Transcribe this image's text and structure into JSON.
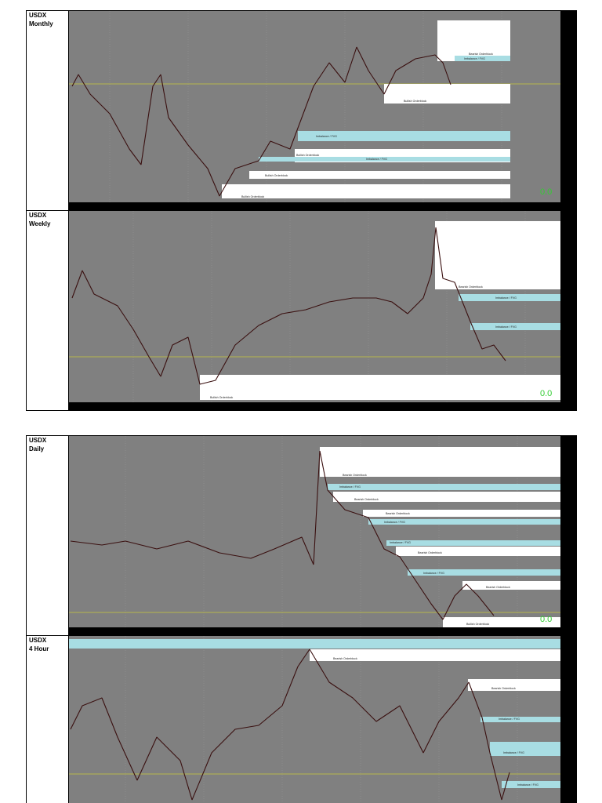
{
  "panels": [
    {
      "symbol": "USDX",
      "timeframe": "Monthly",
      "zones": [
        "Bearish Orderblock",
        "Imbalance / FVG",
        "Bullish Orderblock",
        "Imbalance / FVG",
        "Bullish Orderblock",
        "Imbalance / FVG",
        "Bullish Orderblock",
        "Bullish Orderblock"
      ],
      "level": "0.0"
    },
    {
      "symbol": "USDX",
      "timeframe": "Weekly",
      "zones": [
        "Bearish Orderblock",
        "Imbalance / FVG",
        "Imbalance / FVG",
        "Bullish Orderblock"
      ],
      "level": "0.0"
    },
    {
      "symbol": "USDX",
      "timeframe": "Daily",
      "zones": [
        "Bearish Orderblock",
        "Imbalance / FVG",
        "Bearish Orderblock",
        "Bearish Orderblock",
        "Imbalance / FVG",
        "Imbalance / FVG",
        "Bearish Orderblock",
        "Imbalance / FVG",
        "Bearish Orderblock",
        "Bullish Orderblock"
      ],
      "level": "0.0"
    },
    {
      "symbol": "USDX",
      "timeframe": "4 Hour",
      "zones": [
        "Bearish Orderblock",
        "Bearish Orderblock",
        "Imbalance / FVG",
        "Imbalance / FVG",
        "Imbalance / FVG"
      ]
    }
  ]
}
